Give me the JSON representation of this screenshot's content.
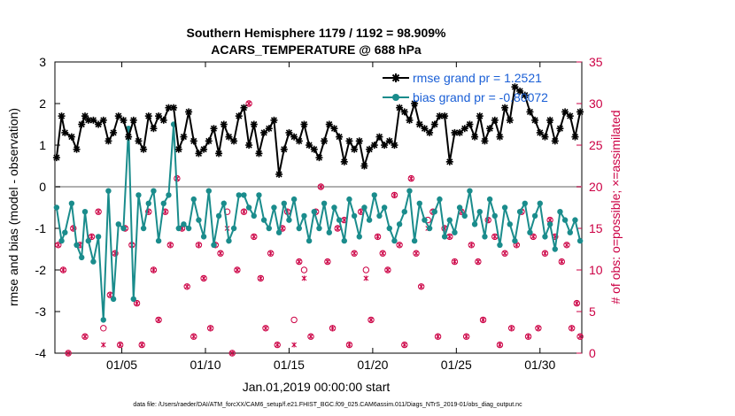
{
  "chart_data": {
    "type": "line",
    "title_line1": "Southern Hemisphere 1179 / 1192 = 98.909%",
    "title_line2": "ACARS_TEMPERATURE @ 688 hPa",
    "ylabel_left": "rmse and bias (model - observation)",
    "ylabel_right": "# of obs: o=possible; ×=assimilated",
    "xlabel": "Jan.01,2019 00:00:00 start",
    "footnote": "data file: /Users/raeder/DAI/ATM_forcXX/CAM6_setup/f.e21.FHIST_BGC.f09_025.CAM6assim.011/Diags_NTrS_2019-01/obs_diag_output.nc",
    "ylim_left": [
      -4,
      3
    ],
    "ylim_right": [
      0,
      35
    ],
    "xlim_days": [
      1,
      32.5
    ],
    "x_ticks": [
      {
        "day": 5,
        "label": "01/05"
      },
      {
        "day": 10,
        "label": "01/10"
      },
      {
        "day": 15,
        "label": "01/15"
      },
      {
        "day": 20,
        "label": "01/20"
      },
      {
        "day": 25,
        "label": "01/25"
      },
      {
        "day": 30,
        "label": "01/30"
      }
    ],
    "y_ticks_left": [
      "-4",
      "-3",
      "-2",
      "-1",
      "0",
      "1",
      "2",
      "3"
    ],
    "y_ticks_right": [
      "0",
      "5",
      "10",
      "15",
      "20",
      "25",
      "30",
      "35"
    ],
    "grid": false,
    "legend_position": "top-right",
    "series": [
      {
        "name": "rmse grand pr = 1.2521",
        "color": "#000000",
        "marker": "star",
        "x": [
          1.1,
          1.4,
          1.6,
          2.0,
          2.3,
          2.6,
          2.8,
          3.0,
          3.3,
          3.6,
          3.9,
          4.2,
          4.5,
          4.8,
          5.1,
          5.4,
          5.7,
          6.0,
          6.3,
          6.6,
          6.9,
          7.2,
          7.5,
          7.8,
          8.1,
          8.4,
          8.7,
          9.0,
          9.3,
          9.6,
          9.9,
          10.2,
          10.5,
          10.8,
          11.1,
          11.4,
          11.7,
          12.0,
          12.3,
          12.6,
          12.9,
          13.2,
          13.5,
          13.8,
          14.1,
          14.4,
          14.7,
          15.0,
          15.3,
          15.6,
          15.9,
          16.2,
          16.5,
          16.8,
          17.1,
          17.4,
          17.7,
          18.0,
          18.3,
          18.6,
          18.9,
          19.2,
          19.5,
          19.8,
          20.1,
          20.4,
          20.7,
          21.0,
          21.3,
          21.6,
          21.9,
          22.2,
          22.5,
          22.8,
          23.1,
          23.4,
          23.7,
          24.0,
          24.3,
          24.6,
          24.9,
          25.2,
          25.5,
          25.8,
          26.1,
          26.4,
          26.7,
          27.0,
          27.3,
          27.6,
          27.9,
          28.2,
          28.5,
          28.8,
          29.1,
          29.4,
          29.7,
          30.0,
          30.3,
          30.6,
          30.9,
          31.2,
          31.5,
          31.8,
          32.1,
          32.4
        ],
        "values": [
          0.7,
          1.7,
          1.3,
          1.2,
          0.9,
          1.5,
          1.7,
          1.6,
          1.6,
          1.5,
          1.6,
          1.1,
          1.3,
          1.7,
          1.6,
          1.2,
          1.6,
          1.1,
          0.9,
          1.7,
          1.4,
          1.7,
          1.6,
          1.9,
          1.9,
          0.9,
          1.2,
          1.8,
          1.1,
          0.8,
          0.9,
          1.1,
          1.4,
          0.8,
          1.5,
          1.2,
          1.1,
          1.7,
          1.9,
          1.0,
          1.5,
          0.8,
          1.3,
          1.4,
          1.6,
          0.3,
          0.9,
          1.3,
          1.2,
          1.1,
          1.5,
          1.0,
          0.9,
          0.7,
          1.1,
          1.5,
          1.4,
          1.2,
          0.6,
          1.1,
          0.9,
          1.1,
          0.5,
          0.9,
          1.0,
          1.2,
          1.0,
          1.1,
          1.0,
          1.9,
          1.8,
          1.6,
          2.0,
          1.5,
          1.4,
          1.3,
          1.5,
          1.7,
          1.7,
          0.6,
          1.3,
          1.3,
          1.4,
          1.5,
          1.2,
          1.7,
          1.1,
          1.4,
          1.6,
          1.2,
          1.9,
          1.6,
          2.4,
          2.3,
          2.2,
          1.8,
          1.6,
          1.3,
          1.2,
          1.6,
          1.1,
          1.4,
          1.8,
          1.7,
          1.2,
          1.8
        ]
      },
      {
        "name": "bias grand pr = -0.80072",
        "color": "#1a8c8c",
        "marker": "dot",
        "x": [
          1.1,
          1.4,
          1.6,
          2.0,
          2.3,
          2.6,
          2.8,
          3.0,
          3.3,
          3.6,
          3.9,
          4.2,
          4.5,
          4.8,
          5.1,
          5.4,
          5.7,
          6.0,
          6.3,
          6.6,
          6.9,
          7.2,
          7.5,
          7.8,
          8.1,
          8.4,
          8.7,
          9.0,
          9.3,
          9.6,
          9.9,
          10.2,
          10.5,
          10.8,
          11.1,
          11.4,
          11.7,
          12.0,
          12.3,
          12.6,
          12.9,
          13.2,
          13.5,
          13.8,
          14.1,
          14.4,
          14.7,
          15.0,
          15.3,
          15.6,
          15.9,
          16.2,
          16.5,
          16.8,
          17.1,
          17.4,
          17.7,
          18.0,
          18.3,
          18.6,
          18.9,
          19.2,
          19.5,
          19.8,
          20.1,
          20.4,
          20.7,
          21.0,
          21.3,
          21.6,
          21.9,
          22.2,
          22.5,
          22.8,
          23.1,
          23.4,
          23.7,
          24.0,
          24.3,
          24.6,
          24.9,
          25.2,
          25.5,
          25.8,
          26.1,
          26.4,
          26.7,
          27.0,
          27.3,
          27.6,
          27.9,
          28.2,
          28.5,
          28.8,
          29.1,
          29.4,
          29.7,
          30.0,
          30.3,
          30.6,
          30.9,
          31.2,
          31.5,
          31.8,
          32.1,
          32.4
        ],
        "values": [
          -0.5,
          -1.3,
          -1.1,
          -0.4,
          -1.4,
          -1.7,
          -0.6,
          -1.3,
          -1.8,
          -1.2,
          -3.2,
          -0.1,
          -2.7,
          -0.9,
          -1.0,
          1.4,
          -2.7,
          -0.2,
          -1.0,
          -0.4,
          -0.1,
          -1.3,
          -0.4,
          -0.2,
          1.5,
          -1.0,
          -0.9,
          -1.0,
          -0.3,
          -0.8,
          -1.2,
          -0.1,
          -1.4,
          -0.7,
          -0.4,
          -1.3,
          -1.0,
          -0.2,
          -0.2,
          -0.5,
          -0.7,
          -0.2,
          -0.8,
          -1.0,
          -0.5,
          -1.1,
          -0.4,
          -0.8,
          -0.3,
          -1.0,
          -0.7,
          -1.3,
          -0.6,
          -1.0,
          -0.4,
          -1.1,
          -0.5,
          -0.8,
          -1.3,
          -0.3,
          -0.7,
          -1.2,
          -0.5,
          -0.8,
          -0.2,
          -0.7,
          -0.5,
          -1.0,
          -1.3,
          -0.9,
          -0.6,
          -0.1,
          -1.3,
          -0.4,
          -0.8,
          -1.0,
          -0.6,
          -0.3,
          -1.2,
          -0.8,
          -1.1,
          -0.5,
          -0.7,
          -0.1,
          -0.9,
          -0.6,
          -1.2,
          -0.3,
          -0.7,
          -1.4,
          -0.5,
          -0.9,
          -1.3,
          -0.6,
          -0.4,
          -1.1,
          -0.7,
          -0.4,
          -1.2,
          -0.9,
          -1.5,
          -0.6,
          -0.8,
          -1.1,
          -0.8,
          -1.3
        ]
      },
      {
        "name": "# obs possible",
        "color": "#cc0044",
        "marker": "o",
        "x": [
          1.2,
          1.5,
          1.8,
          2.1,
          2.5,
          2.8,
          3.2,
          3.6,
          3.9,
          4.3,
          4.6,
          4.9,
          5.2,
          5.6,
          5.9,
          6.2,
          6.6,
          6.9,
          7.2,
          7.6,
          7.9,
          8.3,
          8.6,
          8.9,
          9.3,
          9.6,
          9.9,
          10.3,
          10.6,
          10.9,
          11.3,
          11.6,
          11.9,
          12.3,
          12.6,
          12.9,
          13.3,
          13.6,
          13.9,
          14.3,
          14.6,
          14.9,
          15.3,
          15.6,
          15.9,
          16.3,
          16.6,
          16.9,
          17.3,
          17.6,
          17.9,
          18.3,
          18.6,
          18.9,
          19.3,
          19.6,
          19.9,
          20.3,
          20.6,
          20.9,
          21.3,
          21.6,
          21.9,
          22.3,
          22.6,
          22.9,
          23.3,
          23.6,
          23.9,
          24.3,
          24.6,
          24.9,
          25.3,
          25.6,
          25.9,
          26.3,
          26.6,
          26.9,
          27.3,
          27.6,
          27.9,
          28.3,
          28.6,
          28.9,
          29.3,
          29.6,
          29.9,
          30.3,
          30.6,
          30.9,
          31.3,
          31.6,
          31.9,
          32.2,
          32.4
        ],
        "values": [
          13,
          10,
          0,
          15,
          13,
          2,
          14,
          17,
          3,
          7,
          12,
          1,
          15,
          13,
          6,
          1,
          17,
          10,
          4,
          17,
          13,
          21,
          15,
          8,
          2,
          13,
          9,
          3,
          13,
          12,
          17,
          0,
          10,
          17,
          30,
          14,
          9,
          3,
          12,
          1,
          15,
          17,
          4,
          11,
          10,
          2,
          17,
          20,
          11,
          3,
          15,
          16,
          1,
          12,
          17,
          10,
          4,
          14,
          12,
          10,
          19,
          13,
          1,
          21,
          12,
          8,
          16,
          17,
          2,
          15,
          14,
          11,
          17,
          2,
          13,
          11,
          4,
          16,
          14,
          1,
          12,
          3,
          13,
          17,
          2,
          14,
          3,
          12,
          16,
          14,
          11,
          13,
          3,
          6,
          2
        ]
      },
      {
        "name": "# obs assimilated",
        "color": "#cc0044",
        "marker": "x",
        "x": [
          1.2,
          1.5,
          1.8,
          2.1,
          2.5,
          2.8,
          3.2,
          3.6,
          3.9,
          4.3,
          4.6,
          4.9,
          5.2,
          5.6,
          5.9,
          6.2,
          6.6,
          6.9,
          7.2,
          7.6,
          7.9,
          8.3,
          8.6,
          8.9,
          9.3,
          9.6,
          9.9,
          10.3,
          10.6,
          10.9,
          11.3,
          11.6,
          11.9,
          12.3,
          12.6,
          12.9,
          13.3,
          13.6,
          13.9,
          14.3,
          14.6,
          14.9,
          15.3,
          15.6,
          15.9,
          16.3,
          16.6,
          16.9,
          17.3,
          17.6,
          17.9,
          18.3,
          18.6,
          18.9,
          19.3,
          19.6,
          19.9,
          20.3,
          20.6,
          20.9,
          21.3,
          21.6,
          21.9,
          22.3,
          22.6,
          22.9,
          23.3,
          23.6,
          23.9,
          24.3,
          24.6,
          24.9,
          25.3,
          25.6,
          25.9,
          26.3,
          26.6,
          26.9,
          27.3,
          27.6,
          27.9,
          28.3,
          28.6,
          28.9,
          29.3,
          29.6,
          29.9,
          30.3,
          30.6,
          30.9,
          31.3,
          31.6,
          31.9,
          32.2,
          32.4
        ],
        "values": [
          13,
          10,
          0,
          15,
          13,
          2,
          14,
          17,
          1,
          7,
          12,
          1,
          15,
          13,
          6,
          1,
          17,
          10,
          4,
          17,
          13,
          21,
          15,
          8,
          2,
          13,
          9,
          3,
          13,
          12,
          15,
          0,
          10,
          17,
          30,
          14,
          9,
          3,
          12,
          1,
          15,
          17,
          1,
          11,
          9,
          2,
          17,
          20,
          11,
          3,
          15,
          16,
          1,
          12,
          17,
          9,
          4,
          14,
          12,
          10,
          19,
          13,
          1,
          21,
          12,
          8,
          15,
          17,
          2,
          15,
          14,
          11,
          17,
          2,
          13,
          11,
          4,
          16,
          14,
          1,
          12,
          3,
          13,
          17,
          2,
          14,
          3,
          12,
          16,
          14,
          11,
          13,
          3,
          6,
          2
        ]
      }
    ]
  }
}
